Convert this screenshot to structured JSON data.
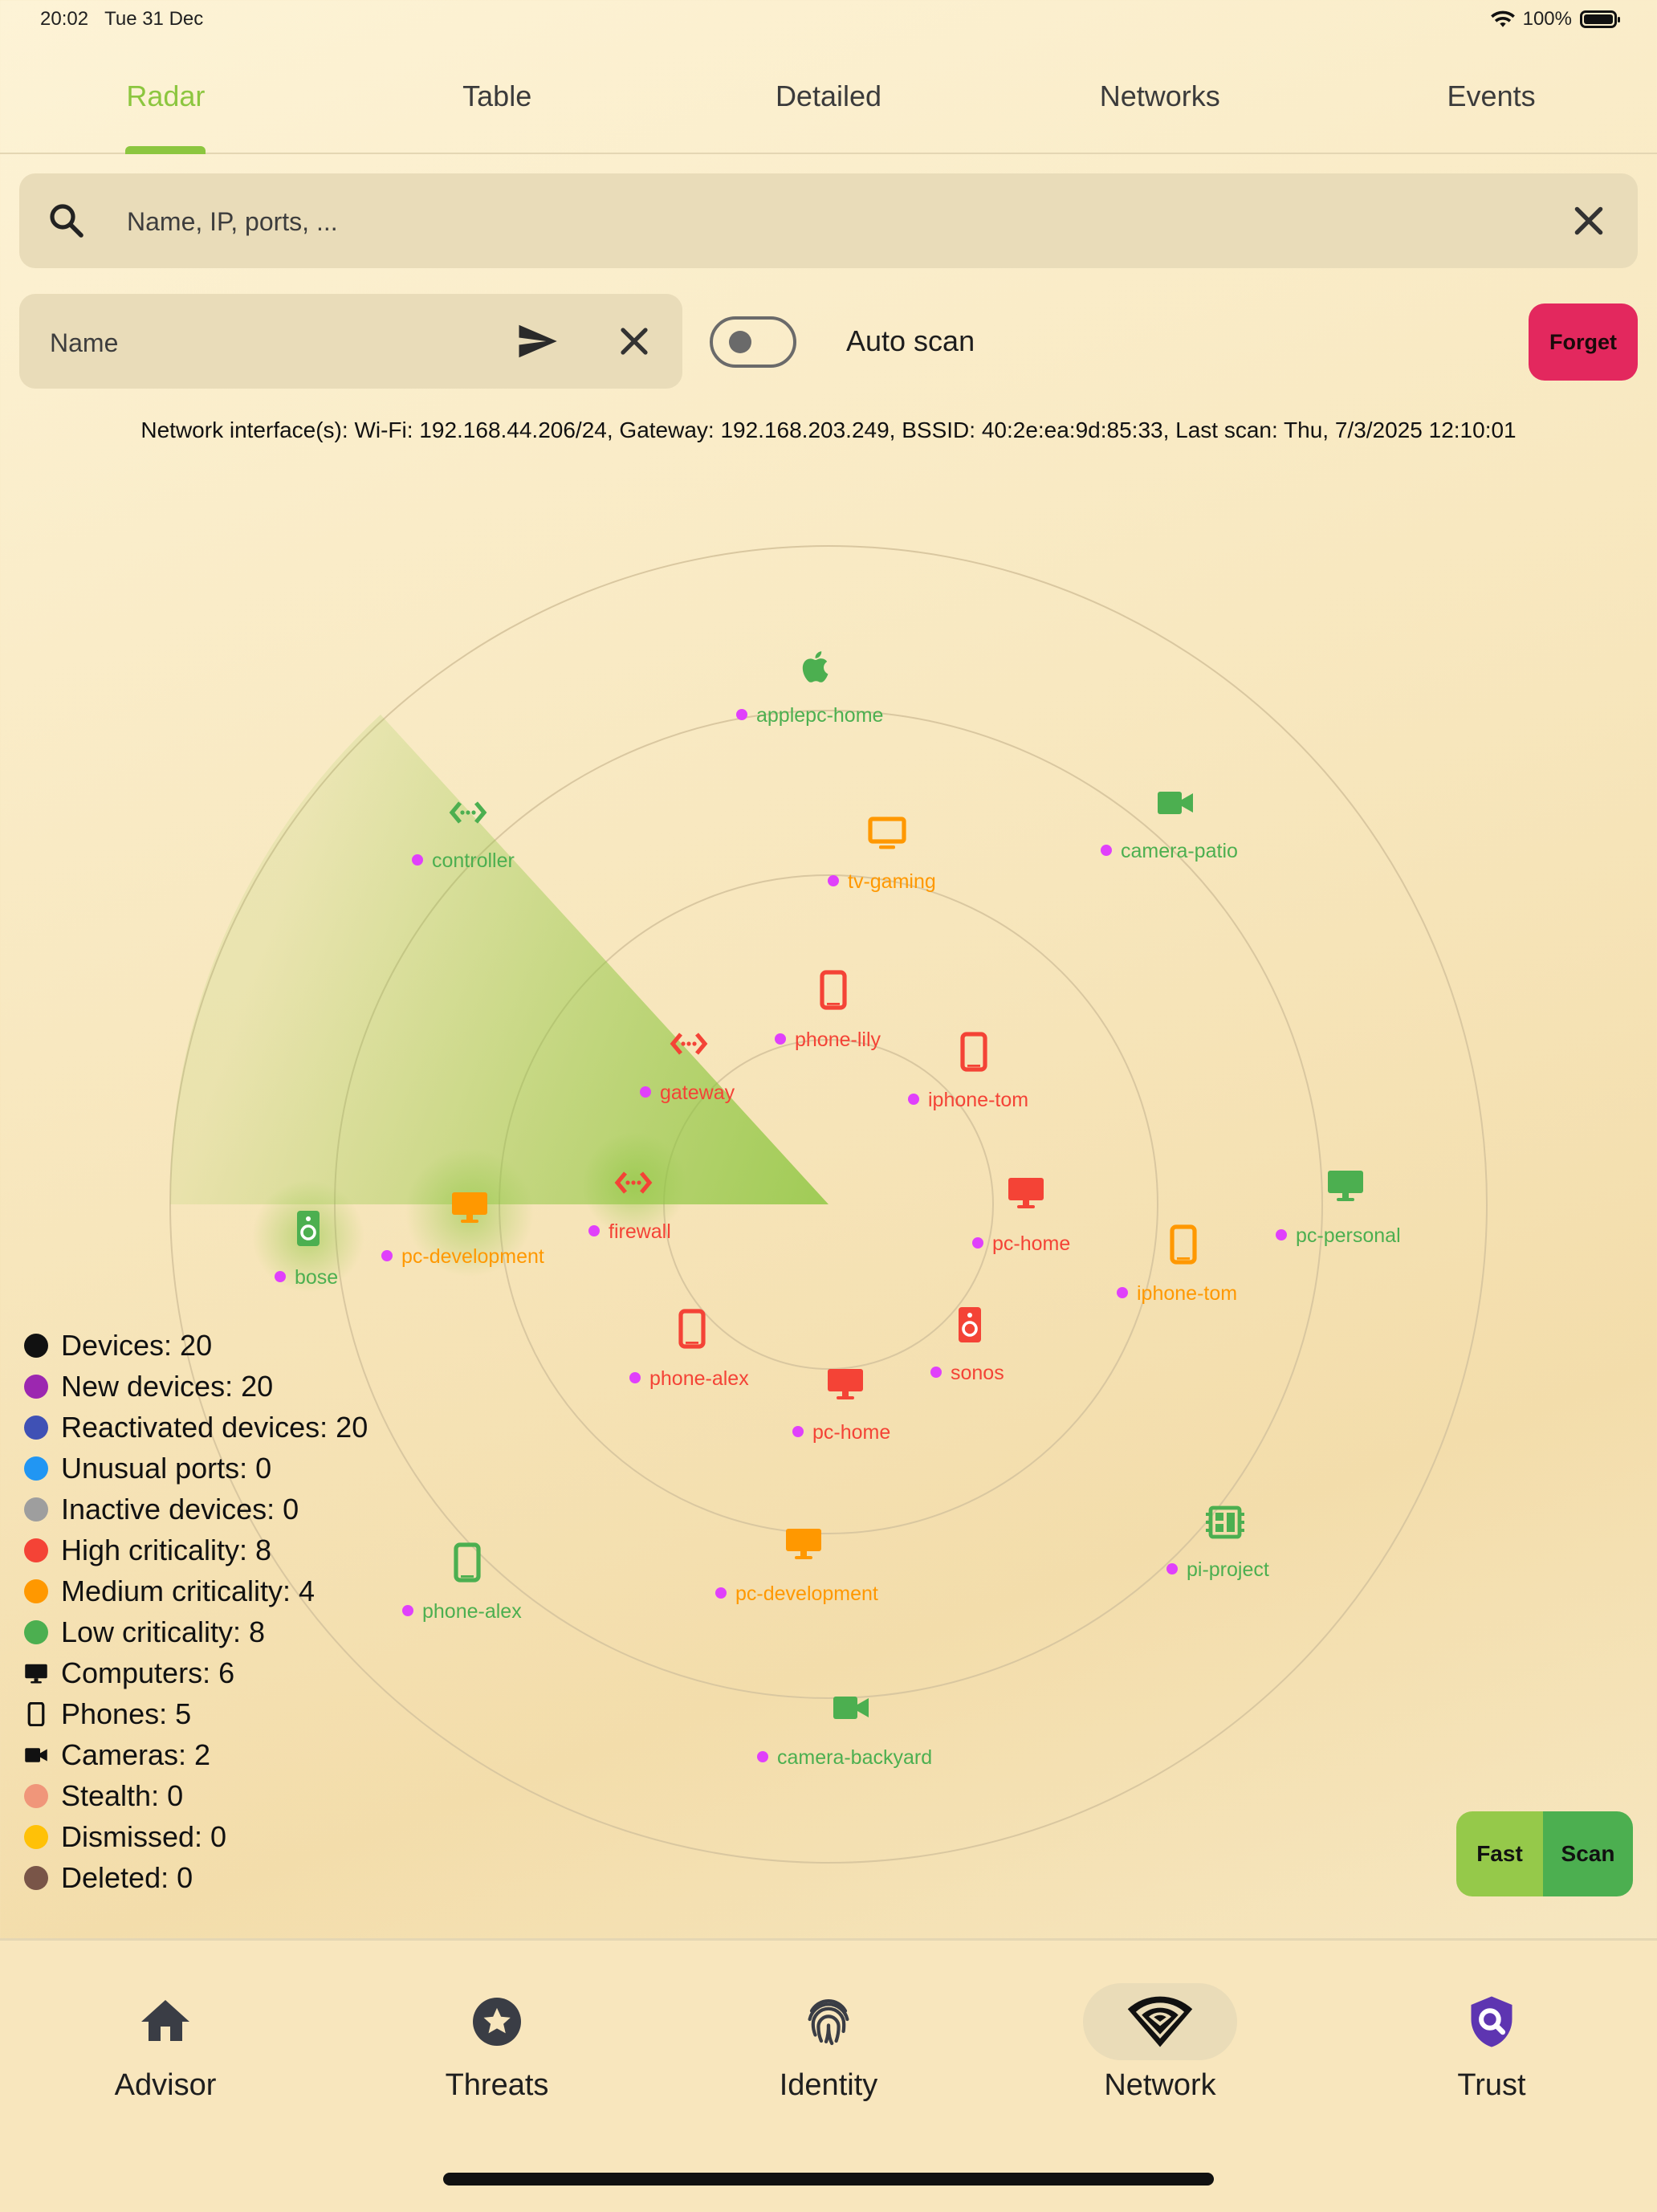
{
  "status_bar": {
    "time": "20:02",
    "date": "Tue 31 Dec",
    "battery": "100%"
  },
  "tabs": [
    {
      "label": "Radar",
      "active": true
    },
    {
      "label": "Table",
      "active": false
    },
    {
      "label": "Detailed",
      "active": false
    },
    {
      "label": "Networks",
      "active": false
    },
    {
      "label": "Events",
      "active": false
    }
  ],
  "search": {
    "placeholder": "Name, IP, ports, ..."
  },
  "name_field": {
    "placeholder": "Name"
  },
  "auto_scan": {
    "label": "Auto scan",
    "enabled": false
  },
  "forget_label": "Forget",
  "network_info": "Network interface(s): Wi-Fi: 192.168.44.206/24, Gateway: 192.168.203.249, BSSID: 40:2e:ea:9d:85:33, Last scan: Thu, 7/3/2025 12:10:01",
  "colors": {
    "high": "#f44336",
    "medium": "#ff9800",
    "low": "#4caf50",
    "new_marker": "#e040fb",
    "accent": "#8cc63f",
    "forget": "#e3285e"
  },
  "radar": {
    "devices": [
      {
        "name": "applepc-home",
        "type": "apple-icon",
        "criticality": "low"
      },
      {
        "name": "controller",
        "type": "router-icon",
        "criticality": "low"
      },
      {
        "name": "camera-patio",
        "type": "camera-icon",
        "criticality": "low"
      },
      {
        "name": "tv-gaming",
        "type": "tv-icon",
        "criticality": "medium"
      },
      {
        "name": "phone-lily",
        "type": "phone-icon",
        "criticality": "high"
      },
      {
        "name": "gateway",
        "type": "router-icon",
        "criticality": "high"
      },
      {
        "name": "iphone-tom",
        "type": "phone-icon",
        "criticality": "high"
      },
      {
        "name": "firewall",
        "type": "router-icon",
        "criticality": "high"
      },
      {
        "name": "pc-home",
        "type": "computer-icon",
        "criticality": "high"
      },
      {
        "name": "pc-personal",
        "type": "computer-icon",
        "criticality": "low"
      },
      {
        "name": "iphone-tom",
        "type": "phone-icon",
        "criticality": "medium"
      },
      {
        "name": "bose",
        "type": "speaker-icon",
        "criticality": "low"
      },
      {
        "name": "pc-development",
        "type": "computer-icon",
        "criticality": "medium"
      },
      {
        "name": "phone-alex",
        "type": "phone-icon",
        "criticality": "high"
      },
      {
        "name": "sonos",
        "type": "speaker-icon",
        "criticality": "high"
      },
      {
        "name": "pc-home",
        "type": "computer-icon",
        "criticality": "high"
      },
      {
        "name": "pi-project",
        "type": "chip-icon",
        "criticality": "low"
      },
      {
        "name": "phone-alex",
        "type": "phone-icon",
        "criticality": "low"
      },
      {
        "name": "pc-development",
        "type": "computer-icon",
        "criticality": "medium"
      },
      {
        "name": "camera-backyard",
        "type": "camera-icon",
        "criticality": "low"
      }
    ]
  },
  "legend": [
    {
      "label": "Devices: 20",
      "kind": "dot",
      "color": "#111111"
    },
    {
      "label": "New devices: 20",
      "kind": "dot",
      "color": "#9c27b0"
    },
    {
      "label": "Reactivated devices: 20",
      "kind": "dot",
      "color": "#3f51b5"
    },
    {
      "label": "Unusual ports: 0",
      "kind": "dot",
      "color": "#2196f3"
    },
    {
      "label": "Inactive devices: 0",
      "kind": "dot",
      "color": "#9e9e9e"
    },
    {
      "label": "High criticality: 8",
      "kind": "dot",
      "color": "#f44336"
    },
    {
      "label": "Medium criticality: 4",
      "kind": "dot",
      "color": "#ff9800"
    },
    {
      "label": "Low criticality: 8",
      "kind": "dot",
      "color": "#4caf50"
    },
    {
      "label": "Computers: 6",
      "kind": "computer-icon",
      "color": "#111111"
    },
    {
      "label": "Phones: 5",
      "kind": "phone-icon",
      "color": "#111111"
    },
    {
      "label": "Cameras: 2",
      "kind": "camera-icon",
      "color": "#111111"
    },
    {
      "label": "Stealth: 0",
      "kind": "dot",
      "color": "#f0967a"
    },
    {
      "label": "Dismissed: 0",
      "kind": "dot",
      "color": "#ffc107"
    },
    {
      "label": "Deleted: 0",
      "kind": "dot",
      "color": "#795548"
    }
  ],
  "scan_buttons": {
    "fast": "Fast",
    "scan": "Scan"
  },
  "bottom_nav": [
    {
      "label": "Advisor",
      "icon": "home-icon",
      "active": false
    },
    {
      "label": "Threats",
      "icon": "star-badge-icon",
      "active": false
    },
    {
      "label": "Identity",
      "icon": "fingerprint-icon",
      "active": false
    },
    {
      "label": "Network",
      "icon": "wifi-icon",
      "active": true
    },
    {
      "label": "Trust",
      "icon": "shield-search-icon",
      "active": false
    }
  ]
}
